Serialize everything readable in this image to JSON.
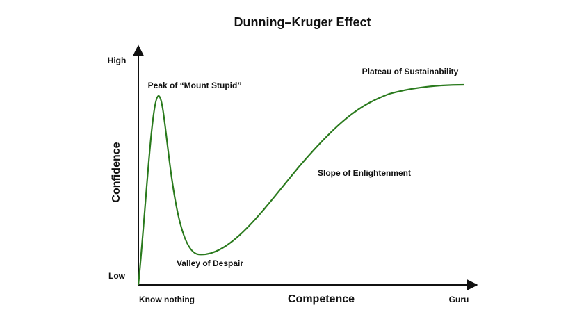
{
  "title": "Dunning–Kruger Effect",
  "y_axis": {
    "title": "Confidence",
    "high": "High",
    "low": "Low"
  },
  "x_axis": {
    "title": "Competence",
    "start": "Know nothing",
    "end": "Guru"
  },
  "annotations": [
    "Peak of “Mount Stupid”",
    "Valley of Despair",
    "Slope of Enlightenment",
    "Plateau of Sustainability"
  ]
}
